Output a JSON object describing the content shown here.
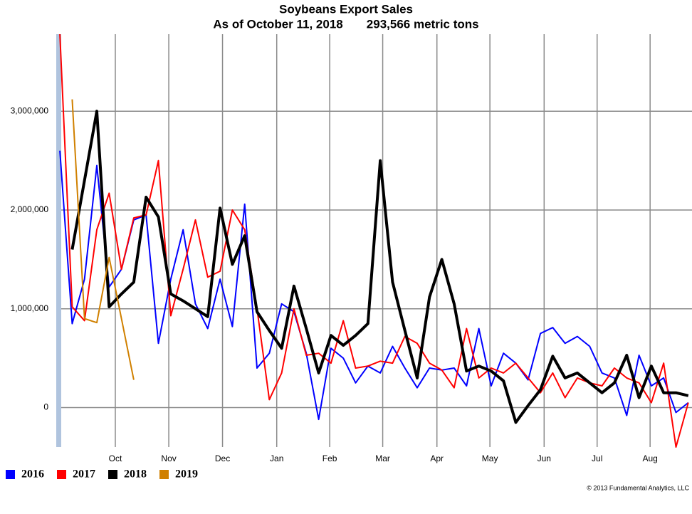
{
  "chart_data": {
    "type": "line",
    "title": "Soybeans Export Sales",
    "subtitle": "As of October 11, 2018       293,566 metric tons",
    "footer": "© 2013 Fundamental Analytics, LLC",
    "x": [
      0,
      1,
      2,
      3,
      4,
      5,
      6,
      7,
      8,
      9,
      10,
      11,
      12,
      13,
      14,
      15,
      16,
      17,
      18,
      19,
      20,
      21,
      22,
      23,
      24,
      25,
      26,
      27,
      28,
      29,
      30,
      31,
      32,
      33,
      34,
      35,
      36,
      37,
      38,
      39,
      40,
      41,
      42,
      43,
      44,
      45,
      46,
      47,
      48,
      49,
      50,
      51
    ],
    "xlim": [
      -0.12,
      51.3
    ],
    "xticks": [
      {
        "value": 4.5,
        "label": "Oct"
      },
      {
        "value": 8.84,
        "label": "Nov"
      },
      {
        "value": 13.2,
        "label": "Dec"
      },
      {
        "value": 17.6,
        "label": "Jan"
      },
      {
        "value": 21.9,
        "label": "Feb"
      },
      {
        "value": 26.2,
        "label": "Mar"
      },
      {
        "value": 30.6,
        "label": "Apr"
      },
      {
        "value": 34.9,
        "label": "May"
      },
      {
        "value": 39.3,
        "label": "Jun"
      },
      {
        "value": 43.6,
        "label": "Jul"
      },
      {
        "value": 47.9,
        "label": "Aug"
      }
    ],
    "ylim": [
      -400000,
      3780000
    ],
    "yticks": [
      0,
      {
        "value": 1000000,
        "label": "1,000,000"
      },
      {
        "value": 2000000,
        "label": "2,000,000"
      },
      {
        "value": 3000000,
        "label": "3,000,000"
      }
    ],
    "grid": true,
    "legend": "bottom-left",
    "series": [
      {
        "name": "2016",
        "color": "#0000ff",
        "values": [
          2600000,
          850000,
          1300000,
          2450000,
          1220000,
          1400000,
          1900000,
          1950000,
          650000,
          1300000,
          1800000,
          1050000,
          800000,
          1300000,
          820000,
          2060000,
          400000,
          550000,
          1050000,
          970000,
          550000,
          -120000,
          600000,
          500000,
          250000,
          420000,
          350000,
          620000,
          400000,
          200000,
          400000,
          380000,
          400000,
          220000,
          800000,
          220000,
          550000,
          450000,
          280000,
          750000,
          810000,
          650000,
          720000,
          620000,
          350000,
          300000,
          -80000,
          530000,
          220000,
          300000,
          -50000,
          50000
        ]
      },
      {
        "name": "2017",
        "color": "#ff0000",
        "values": [
          3780000,
          1020000,
          880000,
          1800000,
          2170000,
          1400000,
          1920000,
          1950000,
          2500000,
          930000,
          1400000,
          1900000,
          1320000,
          1380000,
          2000000,
          1800000,
          1000000,
          80000,
          350000,
          1000000,
          530000,
          550000,
          450000,
          880000,
          400000,
          420000,
          470000,
          450000,
          720000,
          650000,
          450000,
          380000,
          200000,
          800000,
          300000,
          400000,
          350000,
          450000,
          300000,
          150000,
          350000,
          100000,
          300000,
          250000,
          220000,
          400000,
          300000,
          250000,
          50000,
          450000,
          -400000,
          50000
        ]
      },
      {
        "name": "2018",
        "color": "#000000",
        "values": [
          null,
          1600000,
          2300000,
          3000000,
          1020000,
          1150000,
          1270000,
          2130000,
          1930000,
          1150000,
          1080000,
          1000000,
          920000,
          2020000,
          1450000,
          1740000,
          970000,
          780000,
          600000,
          1230000,
          800000,
          350000,
          730000,
          630000,
          730000,
          850000,
          2500000,
          1270000,
          780000,
          300000,
          1120000,
          1500000,
          1050000,
          370000,
          420000,
          370000,
          270000,
          -150000,
          20000,
          180000,
          520000,
          300000,
          350000,
          250000,
          150000,
          250000,
          530000,
          100000,
          420000,
          150000,
          150000,
          120000
        ]
      },
      {
        "name": "2019",
        "color": "#d08000",
        "values": [
          null,
          3120000,
          900000,
          860000,
          1520000,
          900000,
          280000,
          null,
          null,
          null,
          null,
          null,
          null,
          null,
          null,
          null,
          null,
          null,
          null,
          null,
          null,
          null,
          null,
          null,
          null,
          null,
          null,
          null,
          null,
          null,
          null,
          null,
          null,
          null,
          null,
          null,
          null,
          null,
          null,
          null,
          null,
          null,
          null,
          null,
          null,
          null,
          null,
          null,
          null,
          null,
          null,
          null
        ]
      }
    ]
  }
}
